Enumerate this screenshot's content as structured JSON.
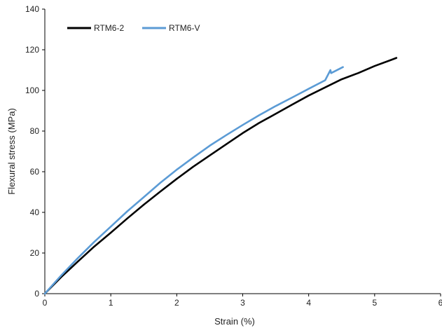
{
  "chart_data": {
    "type": "line",
    "title": "",
    "xlabel": "Strain (%)",
    "ylabel": "Flexural stress (MPa)",
    "xlim": [
      0,
      6
    ],
    "ylim": [
      0,
      140
    ],
    "xticks": [
      "0",
      "1",
      "2",
      "3",
      "4",
      "5",
      "6"
    ],
    "yticks": [
      "0",
      "20",
      "40",
      "60",
      "80",
      "100",
      "120",
      "140"
    ],
    "grid": false,
    "legend_position": "top-left",
    "series": [
      {
        "name": "RTM6-2",
        "color": "#000000",
        "x": [
          0,
          0.25,
          0.5,
          0.75,
          1.0,
          1.25,
          1.5,
          1.75,
          2.0,
          2.25,
          2.5,
          2.75,
          3.0,
          3.25,
          3.5,
          3.75,
          4.0,
          4.25,
          4.5,
          4.75,
          5.0,
          5.25,
          5.33
        ],
        "y": [
          0,
          8.2,
          15.8,
          23.2,
          30.0,
          37.0,
          43.8,
          50.2,
          56.5,
          62.5,
          68.0,
          73.5,
          79.0,
          84.0,
          88.5,
          93.0,
          97.5,
          101.5,
          105.5,
          108.5,
          112.0,
          115.0,
          116.0
        ]
      },
      {
        "name": "RTM6-V",
        "color": "#5b9bd5",
        "x": [
          0,
          0.25,
          0.5,
          0.75,
          1.0,
          1.25,
          1.5,
          1.75,
          2.0,
          2.25,
          2.5,
          2.75,
          3.0,
          3.25,
          3.5,
          3.75,
          4.0,
          4.25,
          4.33,
          4.34,
          4.52
        ],
        "y": [
          0,
          9.0,
          17.5,
          25.5,
          33.0,
          40.5,
          47.5,
          54.5,
          61.0,
          67.0,
          72.8,
          78.0,
          83.0,
          87.8,
          92.3,
          96.5,
          100.8,
          105.0,
          110.0,
          108.5,
          111.5
        ]
      }
    ]
  }
}
